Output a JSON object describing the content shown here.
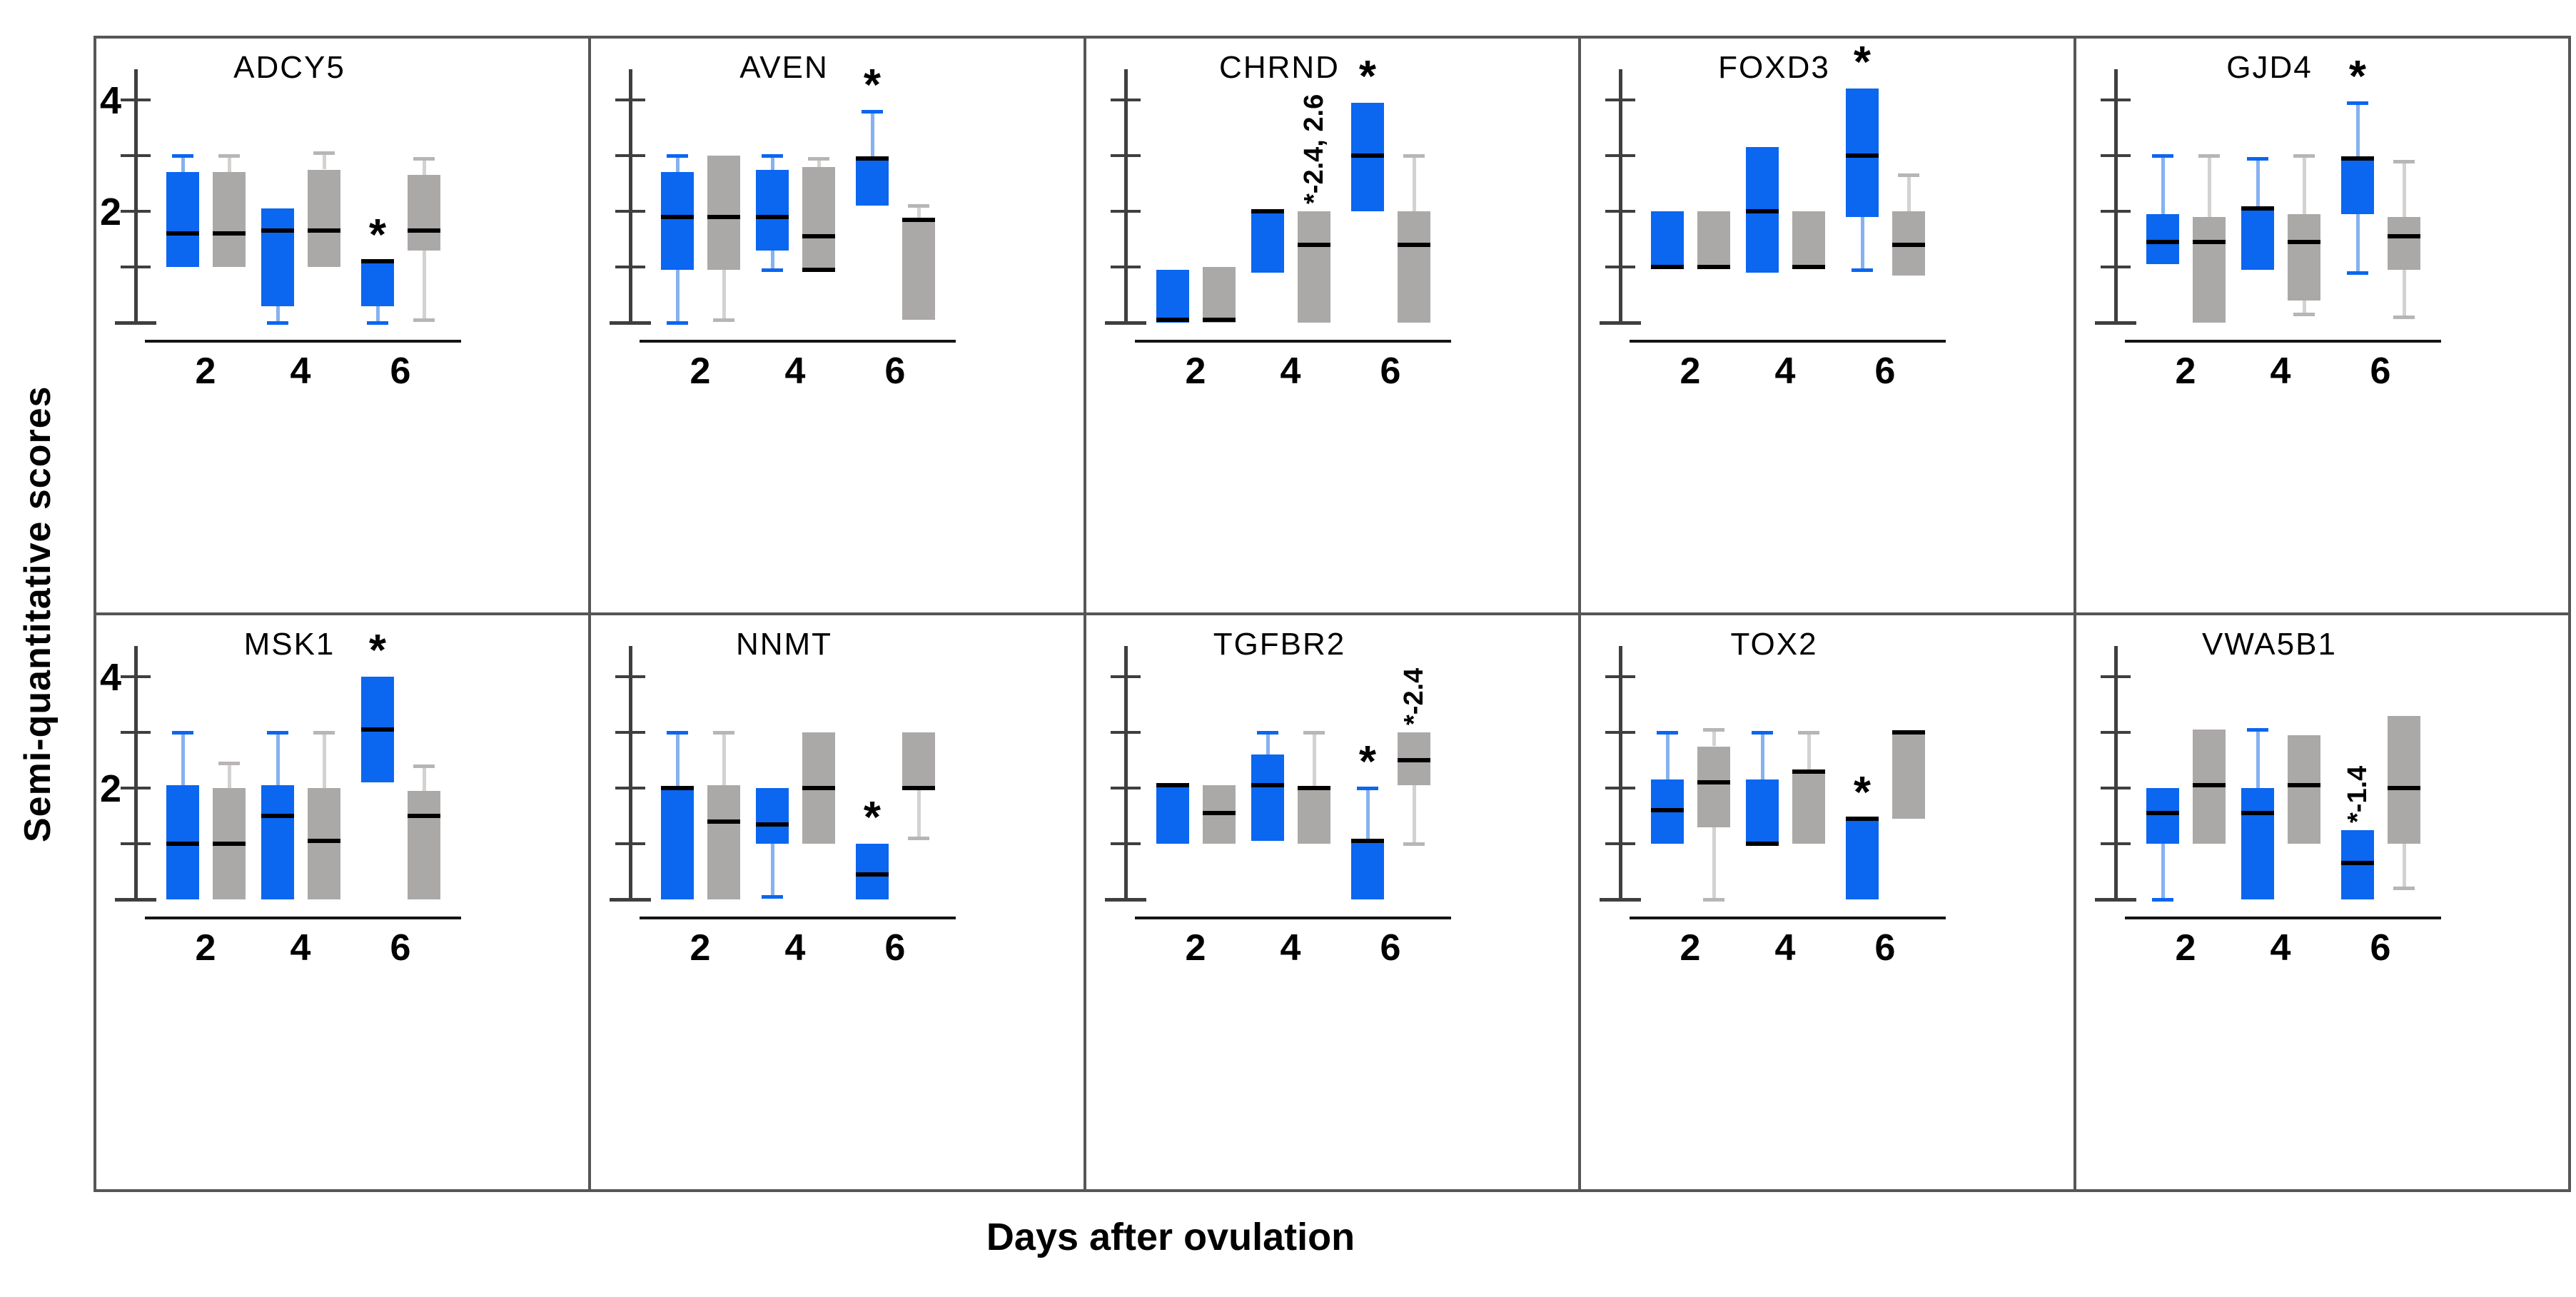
{
  "figure": {
    "y_tick_labels": [
      {
        "label": "4",
        "value": 4
      },
      {
        "label": "2",
        "value": 2
      }
    ],
    "colors": {
      "blue_box": "#0b66f0",
      "blue_whisker": "#85b2f0",
      "gray_box": "#aba8a8",
      "gray_whisker": "#d4d1d1",
      "gray_cap": "#b8b5b5",
      "median": "#000000",
      "axis": "#3f3f3f",
      "grid_border": "#565656",
      "baseline": "#151515",
      "text": "#000000"
    }
  },
  "chart_data": {
    "type": "grouped_boxplot",
    "xlabel": "Days after ovulation",
    "ylabel": "Semi-quantitative scores",
    "x_categories": [
      "2",
      "4",
      "6"
    ],
    "ylim": [
      0,
      4.5
    ],
    "y_ticks": [
      1,
      2,
      3,
      4
    ],
    "y_ticks_labeled": [
      2,
      4
    ],
    "series_names": [
      "blue",
      "gray"
    ],
    "panels": [
      {
        "gene": "ADCY5",
        "days": [
          {
            "day": "2",
            "blue": {
              "q1": 1.0,
              "med": 1.6,
              "q3": 2.7,
              "hi": 3.0
            },
            "gray": {
              "q1": 1.0,
              "med": 1.6,
              "q3": 2.7,
              "hi": 3.0
            }
          },
          {
            "day": "4",
            "blue": {
              "lo": 0.0,
              "q1": 0.3,
              "med": 1.65,
              "q3": 2.05
            },
            "gray": {
              "q1": 1.0,
              "med": 1.65,
              "q3": 2.75,
              "hi": 3.05
            }
          },
          {
            "day": "6",
            "blue": {
              "lo": 0.0,
              "q1": 0.3,
              "med": 1.1,
              "q3": 1.1,
              "note": "*"
            },
            "gray": {
              "lo": 0.05,
              "q1": 1.3,
              "med": 1.65,
              "q3": 2.65,
              "hi": 2.95
            }
          }
        ]
      },
      {
        "gene": "AVEN",
        "days": [
          {
            "day": "2",
            "blue": {
              "lo": 0.0,
              "q1": 0.95,
              "med": 1.9,
              "q3": 2.7,
              "hi": 3.0
            },
            "gray": {
              "lo": 0.05,
              "q1": 0.95,
              "med": 1.9,
              "q3": 3.0
            }
          },
          {
            "day": "4",
            "blue": {
              "lo": 0.95,
              "q1": 1.3,
              "med": 1.9,
              "q3": 2.75,
              "hi": 3.0
            },
            "gray": {
              "q1": 0.95,
              "med": 1.55,
              "q3": 2.8,
              "hi": 2.95,
              "extra": 0.95
            }
          },
          {
            "day": "6",
            "blue": {
              "q1": 2.1,
              "med": 2.95,
              "q3": 2.95,
              "hi": 3.8,
              "note": "*"
            },
            "gray": {
              "q1": 0.05,
              "med": 1.85,
              "q3": 1.85,
              "hi": 2.1
            }
          }
        ]
      },
      {
        "gene": "CHRND",
        "days": [
          {
            "day": "2",
            "blue": {
              "q1": 0.0,
              "med": 0.05,
              "q3": 0.95
            },
            "gray": {
              "q1": 0.0,
              "med": 0.05,
              "q3": 1.0
            }
          },
          {
            "day": "4",
            "blue": {
              "q1": 0.9,
              "med": 2.0,
              "q3": 2.0
            },
            "gray": {
              "q1": 0.0,
              "med": 1.4,
              "q3": 2.0,
              "note": "*-2.4, 2.6"
            }
          },
          {
            "day": "6",
            "blue": {
              "q1": 2.0,
              "med": 3.0,
              "q3": 3.95,
              "note": "*"
            },
            "gray": {
              "q1": 0.0,
              "med": 1.4,
              "q3": 2.0,
              "hi": 3.0
            }
          }
        ]
      },
      {
        "gene": "FOXD3",
        "days": [
          {
            "day": "2",
            "blue": {
              "q1": 1.0,
              "med": 1.0,
              "q3": 2.0
            },
            "gray": {
              "q1": 1.0,
              "med": 1.0,
              "q3": 2.0
            }
          },
          {
            "day": "4",
            "blue": {
              "q1": 0.9,
              "med": 2.0,
              "q3": 3.15
            },
            "gray": {
              "q1": 1.0,
              "med": 1.0,
              "q3": 2.0
            }
          },
          {
            "day": "6",
            "blue": {
              "lo": 0.95,
              "q1": 1.9,
              "med": 3.0,
              "q3": 4.2,
              "note": "*"
            },
            "gray": {
              "q1": 0.85,
              "med": 1.4,
              "q3": 2.0,
              "hi": 2.65
            }
          }
        ]
      },
      {
        "gene": "GJD4",
        "days": [
          {
            "day": "2",
            "blue": {
              "q1": 1.05,
              "med": 1.45,
              "q3": 1.95,
              "hi": 3.0
            },
            "gray": {
              "q1": 0.0,
              "med": 1.45,
              "q3": 1.9,
              "hi": 3.0
            }
          },
          {
            "day": "4",
            "blue": {
              "q1": 0.95,
              "med": 2.05,
              "q3": 2.05,
              "hi": 2.95
            },
            "gray": {
              "lo": 0.15,
              "q1": 0.4,
              "med": 1.45,
              "q3": 1.95,
              "hi": 3.0
            }
          },
          {
            "day": "6",
            "blue": {
              "lo": 0.9,
              "q1": 1.95,
              "med": 2.95,
              "q3": 2.95,
              "hi": 3.95,
              "note": "*"
            },
            "gray": {
              "lo": 0.1,
              "q1": 0.95,
              "med": 1.55,
              "q3": 1.9,
              "hi": 2.9
            }
          }
        ]
      },
      {
        "gene": "MSK1",
        "days": [
          {
            "day": "2",
            "blue": {
              "q1": 0.0,
              "med": 1.0,
              "q3": 2.05,
              "hi": 3.0
            },
            "gray": {
              "q1": 0.0,
              "med": 1.0,
              "q3": 2.0,
              "hi": 2.45
            }
          },
          {
            "day": "4",
            "blue": {
              "q1": 0.0,
              "med": 1.5,
              "q3": 2.05,
              "hi": 3.0
            },
            "gray": {
              "q1": 0.0,
              "med": 1.05,
              "q3": 2.0,
              "hi": 3.0
            }
          },
          {
            "day": "6",
            "blue": {
              "q1": 2.1,
              "med": 3.05,
              "q3": 4.0,
              "note": "*"
            },
            "gray": {
              "q1": 0.0,
              "med": 1.5,
              "q3": 1.95,
              "hi": 2.4
            }
          }
        ]
      },
      {
        "gene": "NNMT",
        "days": [
          {
            "day": "2",
            "blue": {
              "q1": 0.0,
              "med": 2.0,
              "q3": 2.0,
              "hi": 3.0
            },
            "gray": {
              "q1": 0.0,
              "med": 1.4,
              "q3": 2.05,
              "hi": 3.0
            }
          },
          {
            "day": "4",
            "blue": {
              "lo": 0.05,
              "q1": 1.0,
              "med": 1.35,
              "q3": 2.0
            },
            "gray": {
              "q1": 1.0,
              "med": 2.0,
              "q3": 3.0
            }
          },
          {
            "day": "6",
            "blue": {
              "q1": 0.0,
              "med": 0.45,
              "q3": 1.0,
              "note": "*"
            },
            "gray": {
              "lo": 1.1,
              "q1": 2.0,
              "med": 2.0,
              "q3": 3.0
            }
          }
        ]
      },
      {
        "gene": "TGFBR2",
        "days": [
          {
            "day": "2",
            "blue": {
              "q1": 1.0,
              "med": 2.05,
              "q3": 2.05
            },
            "gray": {
              "q1": 1.0,
              "med": 1.55,
              "q3": 2.05
            }
          },
          {
            "day": "4",
            "blue": {
              "q1": 1.05,
              "med": 2.05,
              "q3": 2.6,
              "hi": 3.0
            },
            "gray": {
              "q1": 1.0,
              "med": 2.0,
              "q3": 2.0,
              "hi": 3.0
            }
          },
          {
            "day": "6",
            "blue": {
              "q1": 0.0,
              "med": 1.05,
              "q3": 1.05,
              "hi": 2.0,
              "note": "*"
            },
            "gray": {
              "lo": 1.0,
              "q1": 2.05,
              "med": 2.5,
              "q3": 3.0,
              "note": "*-2.4"
            }
          }
        ]
      },
      {
        "gene": "TOX2",
        "days": [
          {
            "day": "2",
            "blue": {
              "q1": 1.0,
              "med": 1.6,
              "q3": 2.15,
              "hi": 3.0
            },
            "gray": {
              "lo": 0.0,
              "q1": 1.3,
              "med": 2.1,
              "q3": 2.75,
              "hi": 3.05
            }
          },
          {
            "day": "4",
            "blue": {
              "q1": 1.0,
              "med": 1.0,
              "q3": 2.15,
              "hi": 3.0
            },
            "gray": {
              "q1": 1.0,
              "med": 2.3,
              "q3": 2.3,
              "hi": 3.0
            }
          },
          {
            "day": "6",
            "blue": {
              "q1": 0.0,
              "med": 1.45,
              "q3": 1.45,
              "note": "*"
            },
            "gray": {
              "q1": 1.45,
              "med": 3.0,
              "q3": 3.0
            }
          }
        ]
      },
      {
        "gene": "VWA5B1",
        "days": [
          {
            "day": "2",
            "blue": {
              "lo": 0.0,
              "q1": 1.0,
              "med": 1.55,
              "q3": 2.0
            },
            "gray": {
              "q1": 1.0,
              "med": 2.05,
              "q3": 3.05
            }
          },
          {
            "day": "4",
            "blue": {
              "q1": 0.0,
              "med": 1.55,
              "q3": 2.0,
              "hi": 3.05
            },
            "gray": {
              "q1": 1.0,
              "med": 2.05,
              "q3": 2.95
            }
          },
          {
            "day": "6",
            "blue": {
              "q1": 0.0,
              "med": 0.65,
              "q3": 1.25,
              "note": "*-1.4"
            },
            "gray": {
              "lo": 0.2,
              "q1": 1.0,
              "med": 2.0,
              "q3": 3.3
            }
          }
        ]
      }
    ]
  }
}
